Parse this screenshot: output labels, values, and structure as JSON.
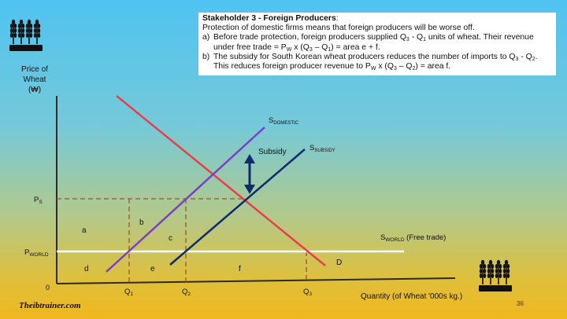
{
  "textbox": {
    "title": "Stakeholder 3 - Foreign Producers",
    "title_colon": ":",
    "intro": "Protection of domestic firms means that foreign producers will be worse off.",
    "item_a_label": "a)",
    "item_a_text": "Before trade protection, foreign producers supplied Q3 - Q1 units of wheat. Their revenue under free trade = PW x (Q3 – Q1) = area e + f.",
    "item_b_label": "b)",
    "item_b_text": "The subsidy for South Korean wheat producers reduces the number of imports to Q3 - Q2. This reduces foreign producer revenue to PW x (Q3 – Q2) = area f."
  },
  "diagram": {
    "y_axis_label_line1": "Price of",
    "y_axis_label_line2": "Wheat",
    "y_axis_label_line3": "(₩)",
    "x_axis_label": "Quantity (of Wheat '000s kg.)",
    "origin": "0",
    "ps_label_main": "P",
    "ps_label_sub": "S",
    "pw_label_main": "P",
    "pw_label_sub": "WORLD",
    "q1_main": "Q",
    "q1_sub": "1",
    "q2_main": "Q",
    "q2_sub": "2",
    "q3_main": "Q",
    "q3_sub": "3",
    "s_domestic_main": "S",
    "s_domestic_sub": "DOMESTIC",
    "s_subsidy_main": "S",
    "s_subsidy_sub": "SUBSIDY",
    "s_world_main": "S",
    "s_world_sub": "WORLD",
    "s_world_note": " (Free trade)",
    "subsidy_label": "Subsidy",
    "demand_label": "D",
    "area_a": "a",
    "area_b": "b",
    "area_c": "c",
    "area_d": "d",
    "area_e": "e",
    "area_f": "f",
    "colors": {
      "demand": "#e8404a",
      "s_domestic": "#7b3fc4",
      "s_subsidy": "#0d2c6e",
      "world": "#ffffff",
      "dashed": "#a0522d"
    }
  },
  "footer": {
    "brand": "Theibtrainer.com",
    "page_number": "36"
  },
  "icons": [
    "wheat-icon",
    "wheat-icon"
  ]
}
